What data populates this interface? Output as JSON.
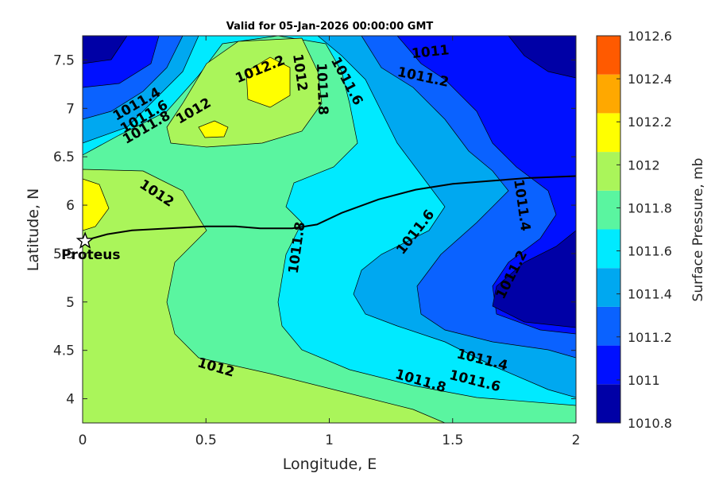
{
  "chart_data": {
    "type": "filled-contour",
    "title": "Valid for 05-Jan-2026 00:00:00 GMT",
    "xlabel": "Longitude, E",
    "ylabel": "Latitude, N",
    "xlim": [
      0,
      2
    ],
    "ylim": [
      3.75,
      7.75
    ],
    "xticks": [
      "0",
      "0.5",
      "1",
      "1.5",
      "2"
    ],
    "yticks": [
      "4",
      "4.5",
      "5",
      "5.5",
      "6",
      "6.5",
      "7",
      "7.5"
    ],
    "colorbar": {
      "label": "Surface Pressure, mb",
      "levels": [
        1010.8,
        1011,
        1011.2,
        1011.4,
        1011.6,
        1011.8,
        1012,
        1012.2,
        1012.4,
        1012.6
      ],
      "tick_labels": [
        "1010.8",
        "1011",
        "1011.2",
        "1011.4",
        "1011.6",
        "1011.8",
        "1012",
        "1012.2",
        "1012.4",
        "1012.6"
      ],
      "colors": [
        "#0000a6",
        "#0010ff",
        "#0a62ff",
        "#00a8f0",
        "#00eaff",
        "#5af5a0",
        "#aaf55a",
        "#ffff00",
        "#ffa800",
        "#ff5a00"
      ]
    },
    "contour_labels": [
      {
        "text": "1011",
        "x": 1.41,
        "y": 7.58,
        "angle": -6
      },
      {
        "text": "1011.2",
        "x": 1.38,
        "y": 7.32,
        "angle": 12
      },
      {
        "text": "1011.4",
        "x": 0.22,
        "y": 7.04,
        "angle": -30
      },
      {
        "text": "1011.6",
        "x": 0.25,
        "y": 6.91,
        "angle": -30
      },
      {
        "text": "1011.8",
        "x": 0.26,
        "y": 6.8,
        "angle": -30
      },
      {
        "text": "1012",
        "x": 0.45,
        "y": 6.97,
        "angle": -30
      },
      {
        "text": "1012.2",
        "x": 0.72,
        "y": 7.4,
        "angle": -22
      },
      {
        "text": "1012",
        "x": 0.88,
        "y": 7.37,
        "angle": 82
      },
      {
        "text": "1011.8",
        "x": 0.97,
        "y": 7.2,
        "angle": 88
      },
      {
        "text": "1011.6",
        "x": 1.07,
        "y": 7.28,
        "angle": 62
      },
      {
        "text": "1012",
        "x": 0.3,
        "y": 6.12,
        "angle": 33
      },
      {
        "text": "1011.8",
        "x": 0.87,
        "y": 5.56,
        "angle": -82
      },
      {
        "text": "1011.6",
        "x": 1.35,
        "y": 5.72,
        "angle": -52
      },
      {
        "text": "1011.4",
        "x": 1.78,
        "y": 6.0,
        "angle": 82
      },
      {
        "text": "1011.2",
        "x": 1.74,
        "y": 5.28,
        "angle": -63
      },
      {
        "text": "1011.4",
        "x": 1.62,
        "y": 4.4,
        "angle": 14
      },
      {
        "text": "1011.6",
        "x": 1.59,
        "y": 4.18,
        "angle": 14
      },
      {
        "text": "1011.8",
        "x": 1.37,
        "y": 4.18,
        "angle": 16
      },
      {
        "text": "1012",
        "x": 0.54,
        "y": 4.32,
        "angle": 16
      }
    ],
    "coastline": [
      [
        0.0,
        5.63
      ],
      [
        0.1,
        5.7
      ],
      [
        0.2,
        5.74
      ],
      [
        0.35,
        5.76
      ],
      [
        0.5,
        5.78
      ],
      [
        0.62,
        5.78
      ],
      [
        0.72,
        5.76
      ],
      [
        0.85,
        5.76
      ],
      [
        0.95,
        5.8
      ],
      [
        1.05,
        5.92
      ],
      [
        1.2,
        6.06
      ],
      [
        1.35,
        6.16
      ],
      [
        1.5,
        6.22
      ],
      [
        1.65,
        6.25
      ],
      [
        1.8,
        6.28
      ],
      [
        2.0,
        6.3
      ]
    ],
    "marker": {
      "label": "Proteus",
      "x": 0.01,
      "y": 5.63,
      "symbol": "star"
    }
  }
}
